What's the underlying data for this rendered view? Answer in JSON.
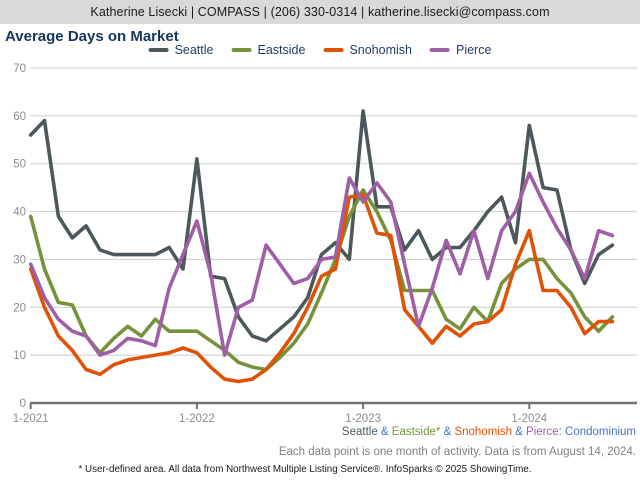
{
  "header": {
    "text": "Katherine Lisecki | COMPASS | (206) 330-0314 | katherine.lisecki@compass.com"
  },
  "title": "Average Days on Market",
  "colors": {
    "seattle": "#4c585c",
    "eastside": "#76933c",
    "snohomish": "#e05206",
    "pierce": "#9e5fa5",
    "footer_blue": "#4472c4",
    "axis_text": "#8c8c8c",
    "gridline": "#cbcbcb",
    "axis_line": "#737373",
    "header_bg": "#d9d9d9",
    "title_text": "#17365d",
    "legend_text": "#1f3a5f"
  },
  "chart_data": {
    "type": "line",
    "title": "Average Days on Market",
    "xlabel": "",
    "ylabel": "",
    "ylim": [
      0,
      70
    ],
    "y_ticks": [
      0,
      10,
      20,
      30,
      40,
      50,
      60,
      70
    ],
    "grid": "horizontal",
    "legend_position": "top-center",
    "x": [
      "1-2021",
      "2-2021",
      "3-2021",
      "4-2021",
      "5-2021",
      "6-2021",
      "7-2021",
      "8-2021",
      "9-2021",
      "10-2021",
      "11-2021",
      "12-2021",
      "1-2022",
      "2-2022",
      "3-2022",
      "4-2022",
      "5-2022",
      "6-2022",
      "7-2022",
      "8-2022",
      "9-2022",
      "10-2022",
      "11-2022",
      "12-2022",
      "1-2023",
      "2-2023",
      "3-2023",
      "4-2023",
      "5-2023",
      "6-2023",
      "7-2023",
      "8-2023",
      "9-2023",
      "10-2023",
      "11-2023",
      "12-2023",
      "1-2024",
      "2-2024",
      "3-2024",
      "4-2024",
      "5-2024",
      "6-2024",
      "7-2024"
    ],
    "x_tick_indices": [
      0,
      12,
      24,
      36
    ],
    "x_tick_labels": [
      "1-2021",
      "1-2022",
      "1-2023",
      "1-2024"
    ],
    "series": [
      {
        "name": "Seattle",
        "color": "#4c585c",
        "values": [
          56,
          59,
          39,
          34.5,
          37,
          32,
          31,
          31,
          31,
          31,
          32.5,
          28,
          51,
          26.5,
          26,
          18,
          14,
          13,
          15.5,
          18,
          22,
          31,
          33.5,
          30,
          61,
          41,
          41,
          32,
          36,
          30,
          32.5,
          32.5,
          36,
          40,
          43,
          33.5,
          58,
          45,
          44.5,
          32,
          25,
          31,
          33
        ]
      },
      {
        "name": "Eastside",
        "color": "#76933c",
        "values": [
          39,
          28,
          21,
          20.5,
          14,
          10.5,
          13.5,
          16,
          14,
          17.5,
          15,
          15,
          15,
          13,
          11,
          8.5,
          7.5,
          7,
          9.5,
          12.5,
          16.5,
          23,
          30,
          39,
          44.5,
          40,
          34,
          23.5,
          23.5,
          23.5,
          17.5,
          15.5,
          20,
          17,
          25,
          28,
          30,
          30,
          26,
          23,
          18,
          15,
          18
        ]
      },
      {
        "name": "Snohomish",
        "color": "#e05206",
        "values": [
          28,
          20,
          14,
          11,
          7,
          6,
          8,
          9,
          9.5,
          10,
          10.5,
          11.5,
          10.5,
          7.5,
          5,
          4.5,
          5,
          7,
          10.5,
          14.5,
          20,
          26.5,
          28,
          43,
          43.5,
          35.5,
          35,
          19.5,
          16,
          12.5,
          16,
          14,
          16.5,
          17,
          19.5,
          29,
          36,
          23.5,
          23.5,
          20,
          14.5,
          17,
          17
        ]
      },
      {
        "name": "Pierce",
        "color": "#9e5fa5",
        "values": [
          29,
          22,
          17.5,
          15,
          14,
          10,
          11,
          13.5,
          13,
          12,
          24,
          31,
          38,
          27,
          10,
          20,
          21.5,
          33,
          29,
          25,
          26,
          30,
          30.5,
          47,
          42,
          46,
          42,
          29,
          16,
          24,
          34,
          27,
          36,
          26,
          36,
          40,
          48,
          42,
          36.5,
          32,
          26,
          36,
          35
        ]
      }
    ]
  },
  "footer": {
    "series_line": [
      {
        "text": "Seattle",
        "color": "#4c585c"
      },
      {
        "text": " & ",
        "color": "#4472c4"
      },
      {
        "text": "Eastside*",
        "color": "#76933c"
      },
      {
        "text": " & ",
        "color": "#4472c4"
      },
      {
        "text": "Snohomish",
        "color": "#e05206"
      },
      {
        "text": " & ",
        "color": "#4472c4"
      },
      {
        "text": "Pierce",
        "color": "#9e5fa5"
      },
      {
        "text": ": Condominium",
        "color": "#4472c4"
      }
    ],
    "activity_line": "Each data point is one month of activity. Data is from August 14, 2024.",
    "disclaimer": "* User-defined area. All data from Northwest Multiple Listing Service®. InfoSparks © 2025 ShowingTime."
  }
}
